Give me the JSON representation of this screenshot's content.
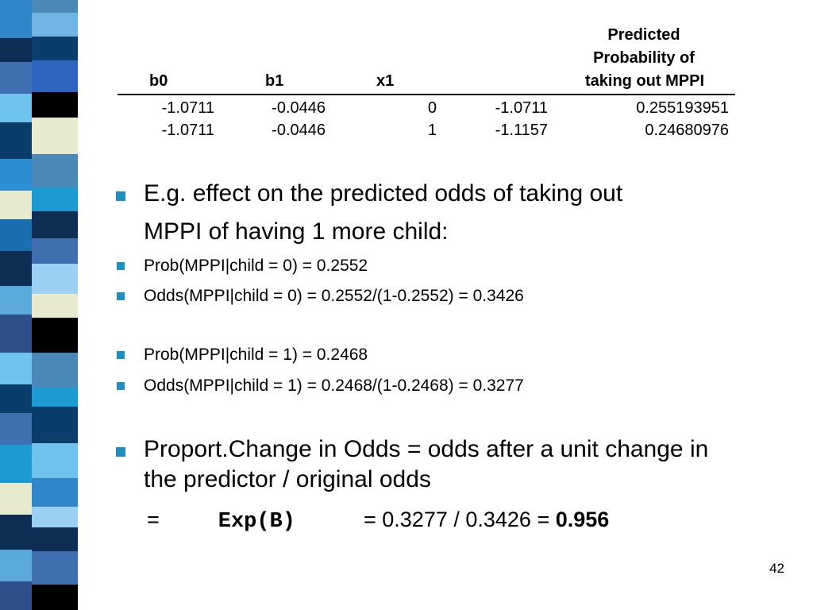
{
  "table": {
    "headers": {
      "b0": "b0",
      "b1": "b1",
      "x1": "x1",
      "prob_line1": "Predicted",
      "prob_line2": "Probability of",
      "prob_line3": "taking out MPPI"
    },
    "rows": [
      {
        "b0": "-1.0711",
        "b1": "-0.0446",
        "x1": "0",
        "logit": "-1.0711",
        "prob": "0.255193951"
      },
      {
        "b0": "-1.0711",
        "b1": "-0.0446",
        "x1": "1",
        "logit": "-1.1157",
        "prob": "0.24680976"
      }
    ]
  },
  "bullets": {
    "intro_line1": "E.g. effect on the predicted odds of taking out",
    "intro_line2": "MPPI of having 1 more child:",
    "prob0": "Prob(MPPI|child = 0) = 0.2552",
    "odds0": "Odds(MPPI|child = 0) = 0.2552/(1-0.2552) = 0.3426",
    "prob1": "Prob(MPPI|child = 1) = 0.2468",
    "odds1": "Odds(MPPI|child = 1) = 0.2468/(1-0.2468) = 0.3277",
    "proport_line1": "Proport.Change in Odds = odds after a unit change in",
    "proport_line2": "the predictor / original odds"
  },
  "equation": {
    "equals": "=",
    "exp": "Exp(B)",
    "calc": "= 0.3277 / 0.3426 = ",
    "result": "0.956"
  },
  "page_number": "42",
  "colors": {
    "bullet": "#1e8fc0",
    "stripe_palette": [
      "#0a3d6b",
      "#2d8fd3",
      "#4a88b8",
      "#e8ead0",
      "#0d2e52",
      "#6fc3ee",
      "#1b9bd1",
      "#000000",
      "#3f6fb0"
    ]
  }
}
